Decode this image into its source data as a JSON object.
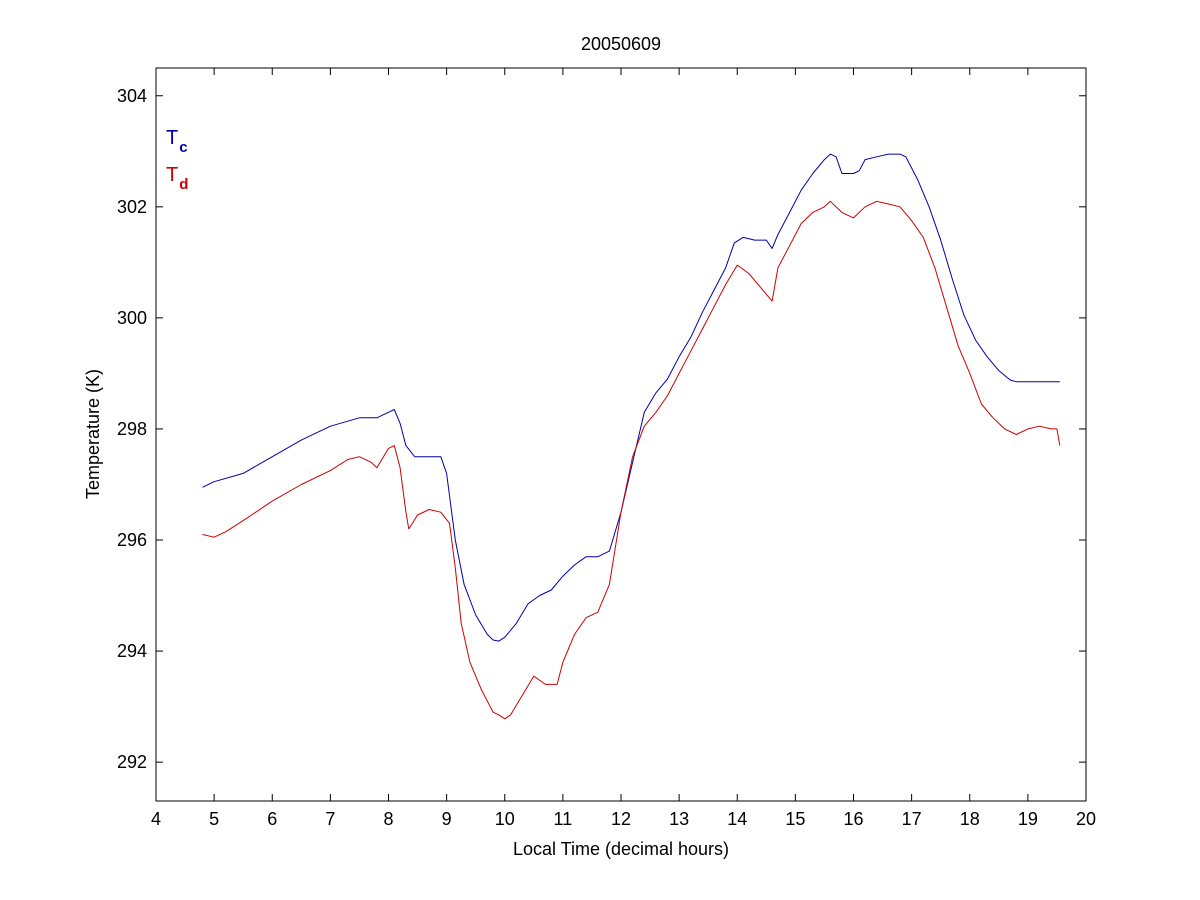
{
  "chart_data": {
    "type": "line",
    "title": "20050609",
    "xlabel": "Local Time (decimal hours)",
    "ylabel": "Temperature (K)",
    "xlim": [
      4,
      20
    ],
    "ylim": [
      291.3,
      304.5
    ],
    "xticks": [
      4,
      5,
      6,
      7,
      8,
      9,
      10,
      11,
      12,
      13,
      14,
      15,
      16,
      17,
      18,
      19,
      20
    ],
    "yticks": [
      292,
      294,
      296,
      298,
      300,
      302,
      304
    ],
    "grid": false,
    "legend_position": "top-left",
    "series": [
      {
        "name": "T",
        "subscript": "c",
        "color": "#0000aa",
        "x": [
          4.8,
          5.0,
          5.5,
          6.0,
          6.5,
          7.0,
          7.5,
          7.8,
          8.0,
          8.1,
          8.2,
          8.3,
          8.45,
          8.6,
          8.9,
          9.0,
          9.05,
          9.15,
          9.3,
          9.5,
          9.7,
          9.8,
          9.9,
          10.0,
          10.2,
          10.4,
          10.6,
          10.8,
          11.0,
          11.2,
          11.4,
          11.6,
          11.8,
          12.0,
          12.2,
          12.4,
          12.6,
          12.8,
          13.0,
          13.2,
          13.4,
          13.6,
          13.8,
          13.95,
          14.1,
          14.3,
          14.5,
          14.6,
          14.7,
          14.9,
          15.1,
          15.3,
          15.5,
          15.6,
          15.7,
          15.8,
          16.0,
          16.1,
          16.2,
          16.4,
          16.6,
          16.8,
          16.9,
          17.1,
          17.3,
          17.5,
          17.7,
          17.9,
          18.1,
          18.3,
          18.5,
          18.7,
          18.8,
          19.0,
          19.2,
          19.4,
          19.55
        ],
        "values": [
          296.95,
          297.05,
          297.2,
          297.5,
          297.8,
          298.05,
          298.2,
          298.2,
          298.3,
          298.35,
          298.1,
          297.7,
          297.5,
          297.5,
          297.5,
          297.2,
          296.8,
          296.0,
          295.2,
          294.65,
          294.3,
          294.2,
          294.18,
          294.25,
          294.5,
          294.85,
          295.0,
          295.1,
          295.35,
          295.55,
          295.7,
          295.7,
          295.8,
          296.5,
          297.4,
          298.3,
          298.65,
          298.9,
          299.3,
          299.65,
          300.1,
          300.5,
          300.9,
          301.35,
          301.45,
          301.4,
          301.4,
          301.25,
          301.5,
          301.9,
          302.3,
          302.6,
          302.85,
          302.95,
          302.9,
          302.6,
          302.6,
          302.65,
          302.85,
          302.9,
          302.95,
          302.95,
          302.9,
          302.5,
          302.0,
          301.4,
          300.7,
          300.05,
          299.6,
          299.3,
          299.05,
          298.88,
          298.85,
          298.85,
          298.85,
          298.85,
          298.85
        ]
      },
      {
        "name": "T",
        "subscript": "d",
        "color": "#cc0000",
        "x": [
          4.8,
          5.0,
          5.2,
          5.5,
          6.0,
          6.5,
          7.0,
          7.3,
          7.5,
          7.7,
          7.8,
          8.0,
          8.1,
          8.2,
          8.3,
          8.35,
          8.5,
          8.7,
          8.9,
          9.05,
          9.15,
          9.25,
          9.4,
          9.6,
          9.8,
          9.9,
          10.0,
          10.1,
          10.3,
          10.5,
          10.7,
          10.9,
          11.0,
          11.2,
          11.4,
          11.6,
          11.8,
          12.0,
          12.2,
          12.4,
          12.6,
          12.8,
          13.0,
          13.2,
          13.4,
          13.6,
          13.8,
          14.0,
          14.2,
          14.4,
          14.6,
          14.7,
          14.9,
          15.1,
          15.3,
          15.5,
          15.6,
          15.8,
          16.0,
          16.2,
          16.4,
          16.6,
          16.8,
          17.0,
          17.2,
          17.4,
          17.6,
          17.8,
          18.0,
          18.2,
          18.4,
          18.6,
          18.8,
          19.0,
          19.2,
          19.4,
          19.5,
          19.55
        ],
        "values": [
          296.1,
          296.05,
          296.15,
          296.35,
          296.7,
          297.0,
          297.25,
          297.45,
          297.5,
          297.4,
          297.3,
          297.65,
          297.7,
          297.3,
          296.5,
          296.2,
          296.45,
          296.55,
          296.5,
          296.3,
          295.5,
          294.5,
          293.8,
          293.3,
          292.9,
          292.85,
          292.78,
          292.85,
          293.2,
          293.55,
          293.4,
          293.4,
          293.8,
          294.3,
          294.6,
          294.7,
          295.2,
          296.5,
          297.5,
          298.05,
          298.3,
          298.6,
          299.0,
          299.4,
          299.8,
          300.2,
          300.6,
          300.95,
          300.8,
          300.55,
          300.3,
          300.9,
          301.3,
          301.7,
          301.9,
          302.0,
          302.1,
          301.9,
          301.8,
          302.0,
          302.1,
          302.05,
          302.0,
          301.75,
          301.45,
          300.9,
          300.2,
          299.5,
          299.0,
          298.45,
          298.2,
          298.0,
          297.9,
          298.0,
          298.05,
          298.0,
          298.0,
          297.7
        ]
      }
    ]
  }
}
